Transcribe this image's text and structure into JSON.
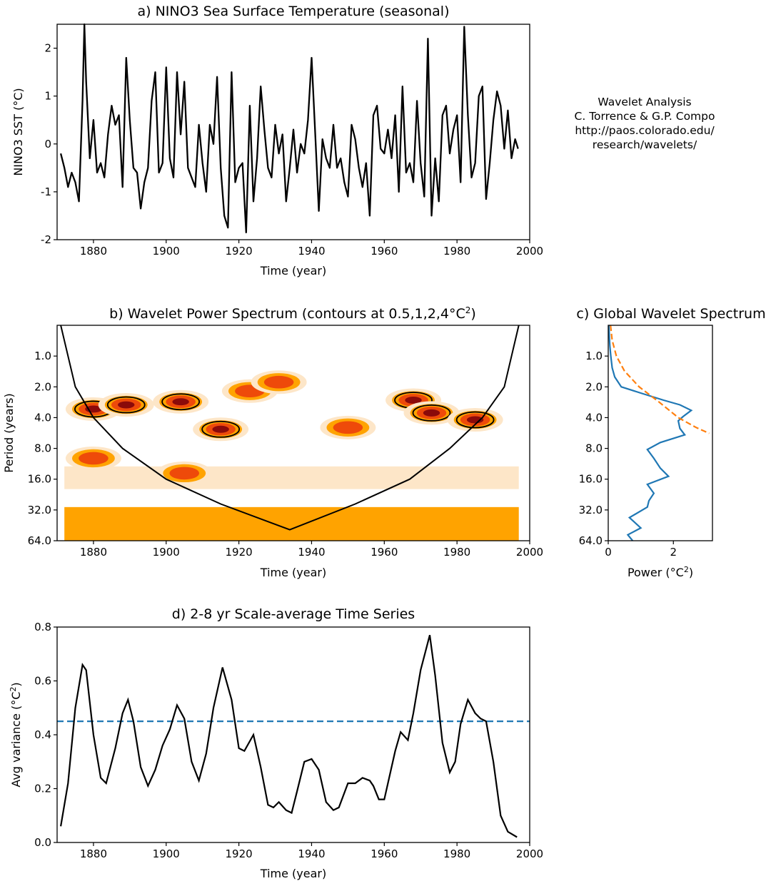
{
  "credit": [
    "Wavelet Analysis",
    "C. Torrence & G.P. Compo",
    "http://paos.colorado.edu/",
    "research/wavelets/"
  ],
  "colors": {
    "line": "#000000",
    "series_blue": "#1f77b4",
    "series_orange": "#ff7f0e",
    "wps_levels": [
      "#fde6c8",
      "#ffa300",
      "#ee4a0a",
      "#8b0a0a"
    ]
  },
  "chart_data": [
    {
      "id": "a",
      "type": "line",
      "title": "a) NINO3 Sea Surface Temperature (seasonal)",
      "xlabel": "Time (year)",
      "ylabel": "NINO3 SST (°C)",
      "xlim": [
        1870,
        2000
      ],
      "ylim": [
        -2.0,
        2.5
      ],
      "xticks": [
        1880,
        1900,
        1920,
        1940,
        1960,
        1980,
        2000
      ],
      "yticks": [
        -2,
        -1,
        0,
        1,
        2
      ],
      "grid": false,
      "x": [
        1871.0,
        1872.0,
        1873.0,
        1874.0,
        1875.0,
        1876.0,
        1877.0,
        1877.5,
        1878.0,
        1879.0,
        1880.0,
        1881.0,
        1882.0,
        1883.0,
        1884.0,
        1885.0,
        1886.0,
        1887.0,
        1888.0,
        1889.0,
        1890.0,
        1891.0,
        1892.0,
        1893.0,
        1894.0,
        1895.0,
        1896.0,
        1897.0,
        1898.0,
        1899.0,
        1900.0,
        1901.0,
        1902.0,
        1903.0,
        1904.0,
        1905.0,
        1906.0,
        1907.0,
        1908.0,
        1909.0,
        1910.0,
        1911.0,
        1912.0,
        1913.0,
        1914.0,
        1915.0,
        1916.0,
        1917.0,
        1918.0,
        1919.0,
        1920.0,
        1921.0,
        1922.0,
        1923.0,
        1924.0,
        1925.0,
        1926.0,
        1927.0,
        1928.0,
        1929.0,
        1930.0,
        1931.0,
        1932.0,
        1933.0,
        1934.0,
        1935.0,
        1936.0,
        1937.0,
        1938.0,
        1939.0,
        1940.0,
        1941.0,
        1942.0,
        1943.0,
        1944.0,
        1945.0,
        1946.0,
        1947.0,
        1948.0,
        1949.0,
        1950.0,
        1951.0,
        1952.0,
        1953.0,
        1954.0,
        1955.0,
        1956.0,
        1957.0,
        1958.0,
        1959.0,
        1960.0,
        1961.0,
        1962.0,
        1963.0,
        1964.0,
        1965.0,
        1966.0,
        1967.0,
        1968.0,
        1969.0,
        1970.0,
        1971.0,
        1972.0,
        1973.0,
        1974.0,
        1975.0,
        1976.0,
        1977.0,
        1978.0,
        1979.0,
        1980.0,
        1981.0,
        1982.0,
        1983.0,
        1984.0,
        1985.0,
        1986.0,
        1987.0,
        1988.0,
        1989.0,
        1990.0,
        1991.0,
        1992.0,
        1993.0,
        1994.0,
        1995.0,
        1996.0,
        1996.8
      ],
      "values": [
        -0.2,
        -0.5,
        -0.9,
        -0.6,
        -0.8,
        -1.2,
        0.9,
        2.5,
        1.3,
        -0.3,
        0.5,
        -0.6,
        -0.4,
        -0.7,
        0.2,
        0.8,
        0.4,
        0.6,
        -0.9,
        1.8,
        0.5,
        -0.5,
        -0.6,
        -1.35,
        -0.8,
        -0.5,
        0.9,
        1.5,
        -0.6,
        -0.4,
        1.6,
        -0.3,
        -0.7,
        1.5,
        0.2,
        1.3,
        -0.5,
        -0.7,
        -0.9,
        0.4,
        -0.4,
        -1.0,
        0.4,
        0.0,
        1.4,
        -0.5,
        -1.5,
        -1.75,
        1.5,
        -0.8,
        -0.5,
        -0.4,
        -1.85,
        0.8,
        -1.2,
        -0.3,
        1.2,
        0.3,
        -0.5,
        -0.7,
        0.4,
        -0.2,
        0.2,
        -1.2,
        -0.5,
        0.3,
        -0.6,
        0.0,
        -0.2,
        0.5,
        1.8,
        0.2,
        -1.4,
        0.1,
        -0.3,
        -0.5,
        0.4,
        -0.5,
        -0.3,
        -0.8,
        -1.1,
        0.4,
        0.1,
        -0.5,
        -0.9,
        -0.4,
        -1.5,
        0.6,
        0.8,
        -0.1,
        -0.2,
        0.3,
        -0.3,
        0.6,
        -1.0,
        1.2,
        -0.6,
        -0.4,
        -0.8,
        0.9,
        -0.4,
        -1.1,
        2.2,
        -1.5,
        -0.3,
        -1.2,
        0.6,
        0.8,
        -0.2,
        0.3,
        0.6,
        -0.8,
        2.45,
        0.6,
        -0.7,
        -0.4,
        1.0,
        1.2,
        -1.15,
        -0.4,
        0.5,
        1.1,
        0.8,
        -0.1,
        0.7,
        -0.3,
        0.1,
        -0.1
      ]
    },
    {
      "id": "b",
      "type": "heatmap",
      "title": "b) Wavelet Power Spectrum (contours at 0.5,1,2,4°C",
      "title_sup": "2",
      "title_end": ")",
      "xlabel": "Time (year)",
      "ylabel": "Period (years)",
      "xlim": [
        1870,
        2000
      ],
      "ylim": [
        0.5,
        64
      ],
      "yscale": "log2, inverted",
      "xticks": [
        1880,
        1900,
        1920,
        1940,
        1960,
        1980,
        2000
      ],
      "yticks": [
        "1.0",
        "2.0",
        "4.0",
        "8.0",
        "16.0",
        "32.0",
        "64.0"
      ],
      "levels": [
        0.5,
        1,
        2,
        4
      ],
      "cone_of_influence": {
        "x": [
          1871,
          1875,
          1880,
          1888,
          1900,
          1915,
          1934,
          1952,
          1967,
          1978,
          1987,
          1993,
          1997
        ],
        "period": [
          0.5,
          2.0,
          4.0,
          8.0,
          16.0,
          28.0,
          50.0,
          28.0,
          16.0,
          8.0,
          4.0,
          2.0,
          0.5
        ]
      },
      "power_blobs": [
        {
          "x": 1880,
          "period": 3.3,
          "level": 4
        },
        {
          "x": 1889,
          "period": 3.0,
          "level": 4
        },
        {
          "x": 1904,
          "period": 2.8,
          "level": 4
        },
        {
          "x": 1915,
          "period": 5.2,
          "level": 4
        },
        {
          "x": 1923,
          "period": 2.2,
          "level": 3
        },
        {
          "x": 1931,
          "period": 1.8,
          "level": 3
        },
        {
          "x": 1950,
          "period": 5.0,
          "level": 3
        },
        {
          "x": 1968,
          "period": 2.7,
          "level": 4
        },
        {
          "x": 1973,
          "period": 3.6,
          "level": 4
        },
        {
          "x": 1985,
          "period": 4.2,
          "level": 4
        },
        {
          "x": 1905,
          "period": 14.0,
          "level": 3
        },
        {
          "x": 1880,
          "period": 10.0,
          "level": 3
        }
      ]
    },
    {
      "id": "c",
      "type": "line",
      "title": "c) Global Wavelet Spectrum",
      "xlabel": "Power (°C",
      "xlabel_sup": "2",
      "xlabel_end": ")",
      "xlim": [
        0,
        3.2
      ],
      "xticks": [
        0,
        2
      ],
      "yticks": [
        "1.0",
        "2.0",
        "4.0",
        "8.0",
        "16.0",
        "32.0",
        "64.0"
      ],
      "ylim": [
        0.5,
        64
      ],
      "series": [
        {
          "period": [
            0.5,
            0.6,
            0.7,
            0.8,
            1.0,
            1.3,
            1.6,
            2.0,
            2.3,
            2.7,
            3.0,
            3.4,
            3.9,
            4.3,
            5.1,
            5.9,
            7.0,
            8.2,
            10.0,
            12.5,
            15.0,
            18.0,
            22.0,
            26.0,
            30.0,
            38.0,
            48.0,
            56.0,
            64.0
          ],
          "power": [
            0.02,
            0.03,
            0.04,
            0.05,
            0.08,
            0.12,
            0.2,
            0.4,
            1.0,
            1.7,
            2.2,
            2.55,
            2.3,
            2.15,
            2.2,
            2.35,
            1.6,
            1.2,
            1.4,
            1.6,
            1.85,
            1.2,
            1.4,
            1.25,
            1.2,
            0.65,
            1.0,
            0.6,
            0.75
          ]
        },
        {
          "period": [
            0.5,
            0.7,
            1.0,
            1.4,
            2.0,
            2.8,
            4.0,
            5.0,
            5.7
          ],
          "power": [
            0.07,
            0.12,
            0.25,
            0.5,
            0.95,
            1.55,
            2.15,
            2.7,
            3.1
          ]
        }
      ]
    },
    {
      "id": "d",
      "type": "line",
      "title": "d) 2-8 yr Scale-average Time Series",
      "xlabel": "Time (year)",
      "ylabel": "Avg variance (°C",
      "ylabel_sup": "2",
      "ylabel_end": ")",
      "xlim": [
        1870,
        2000
      ],
      "ylim": [
        0.0,
        0.8
      ],
      "xticks": [
        1880,
        1900,
        1920,
        1940,
        1960,
        1980,
        2000
      ],
      "yticks": [
        "0.0",
        "0.2",
        "0.4",
        "0.6",
        "0.8"
      ],
      "threshold": 0.45,
      "x": [
        1871,
        1873,
        1875,
        1877,
        1878,
        1880,
        1882,
        1883.5,
        1886,
        1888,
        1889.5,
        1891,
        1893,
        1895,
        1897,
        1899,
        1901,
        1903,
        1905,
        1907,
        1909,
        1911,
        1913,
        1915.5,
        1918,
        1920,
        1921.5,
        1924,
        1926,
        1928,
        1929.5,
        1931,
        1933,
        1934.5,
        1936,
        1938,
        1940,
        1942,
        1944,
        1946,
        1947.5,
        1950,
        1952,
        1954,
        1956,
        1957,
        1958.5,
        1960,
        1961,
        1963,
        1964.5,
        1966.5,
        1968,
        1970,
        1972.5,
        1974,
        1976,
        1978,
        1979.5,
        1981,
        1983,
        1985,
        1986.5,
        1988,
        1990,
        1992,
        1994,
        1996.5
      ],
      "values": [
        0.06,
        0.22,
        0.5,
        0.66,
        0.64,
        0.4,
        0.24,
        0.22,
        0.35,
        0.48,
        0.53,
        0.45,
        0.28,
        0.21,
        0.27,
        0.36,
        0.42,
        0.51,
        0.46,
        0.3,
        0.23,
        0.33,
        0.5,
        0.65,
        0.53,
        0.35,
        0.34,
        0.4,
        0.28,
        0.14,
        0.13,
        0.15,
        0.12,
        0.11,
        0.19,
        0.3,
        0.31,
        0.27,
        0.15,
        0.12,
        0.13,
        0.22,
        0.22,
        0.24,
        0.23,
        0.21,
        0.16,
        0.16,
        0.22,
        0.34,
        0.41,
        0.38,
        0.48,
        0.64,
        0.77,
        0.62,
        0.37,
        0.26,
        0.3,
        0.44,
        0.53,
        0.48,
        0.46,
        0.45,
        0.3,
        0.1,
        0.04,
        0.02
      ]
    }
  ]
}
